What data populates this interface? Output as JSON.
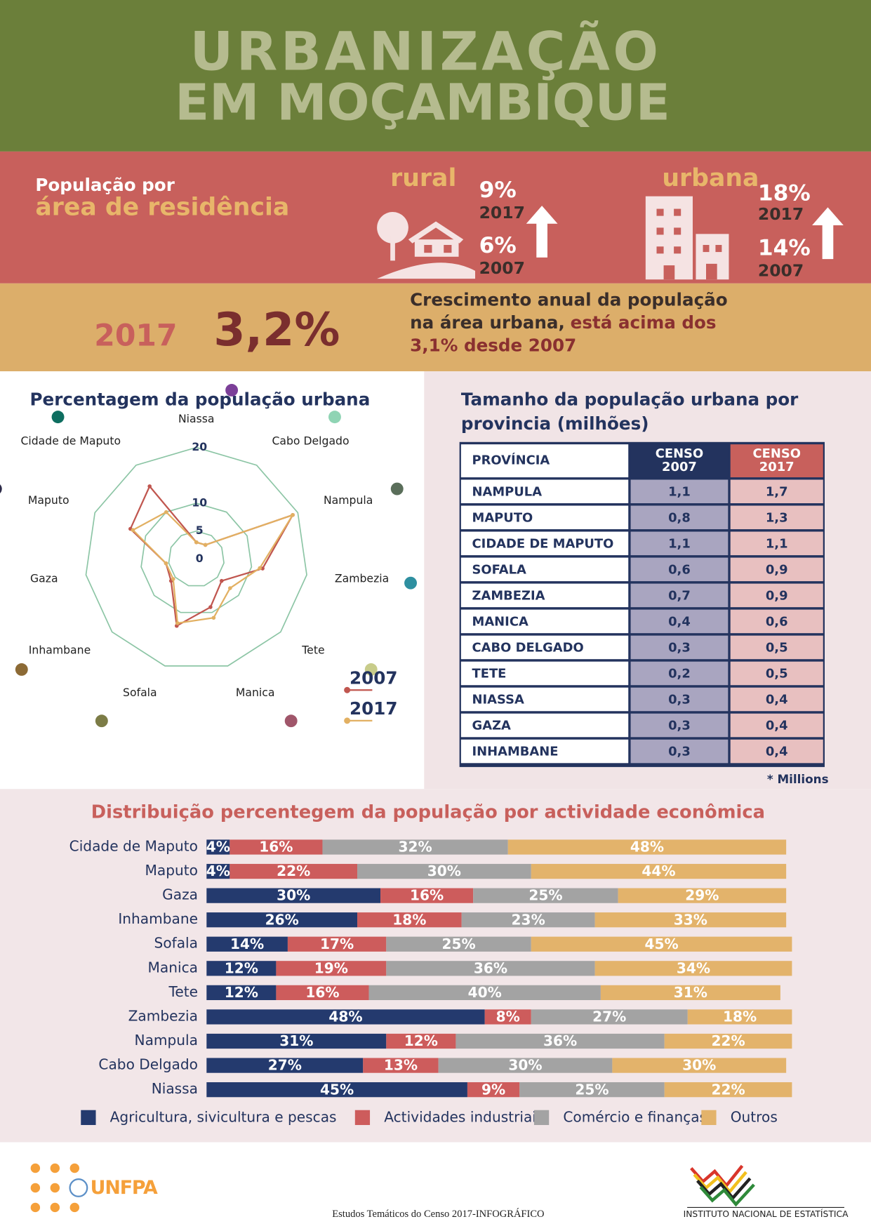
{
  "header": {
    "title": [
      "URBANIZAÇÃO",
      "EM MOÇAMBIQUE"
    ]
  },
  "residence": {
    "label": [
      "População por",
      "área de residência"
    ],
    "areas": [
      {
        "name": "rural",
        "stats": [
          {
            "value": "9%",
            "year": "2017"
          },
          {
            "value": "6%",
            "year": "2007"
          }
        ]
      },
      {
        "name": "urbana",
        "stats": [
          {
            "value": "18%",
            "year": "2017"
          },
          {
            "value": "14%",
            "year": "2007"
          }
        ]
      }
    ]
  },
  "growth": {
    "year": "2017",
    "value": "3,2%",
    "text": [
      "Crescimento anual da população",
      "na área urbana,",
      "está acima dos",
      "3,1% desde 2007"
    ]
  },
  "chart_data": [
    {
      "type": "radar",
      "title": "Percentagem da população urbana",
      "categories": [
        "Niassa",
        "Cabo Delgado",
        "Nampula",
        "Zambezia",
        "Tete",
        "Manica",
        "Sofala",
        "Inhambane",
        "Gaza",
        "Maputo",
        "Cidade de Maputo"
      ],
      "category_colors": [
        "#7b3f98",
        "#8fd4b4",
        "#5a6e5a",
        "#2e8fa0",
        "#c8cc8a",
        "#a0566a",
        "#7c7c46",
        "#8c6a35",
        "#8a2e4e",
        "#2c2a48",
        "#0e6e60"
      ],
      "series": [
        {
          "name": "2007",
          "color": "#c0564f",
          "values": [
            3,
            3,
            19,
            12,
            6,
            9,
            12.5,
            6,
            5.5,
            13,
            15.5
          ]
        },
        {
          "name": "2017",
          "color": "#e2b062",
          "values": [
            3,
            3,
            19,
            11.5,
            8,
            11,
            12,
            5.5,
            5.5,
            12.5,
            10
          ]
        }
      ],
      "ylim": [
        0,
        20
      ],
      "yticks": [
        0,
        5,
        10,
        20
      ],
      "grid": true,
      "grid_color": "#8cc5a5"
    },
    {
      "type": "stacked_barh",
      "title": "Distribuição percentegem da população por actividade econômica",
      "categories": [
        "Cidade de Maputo",
        "Maputo",
        "Gaza",
        "Inhambane",
        "Sofala",
        "Manica",
        "Tete",
        "Zambezia",
        "Nampula",
        "Cabo Delgado",
        "Niassa"
      ],
      "series": [
        {
          "name": "Agricultura, sivicultura e pescas",
          "color": "#243a6e",
          "values": [
            4,
            4,
            30,
            26,
            14,
            12,
            12,
            48,
            31,
            27,
            45
          ],
          "value_labels": [
            "4%",
            "4%",
            "30%",
            "26%",
            "14%",
            "12%",
            "12%",
            "48%",
            "31%",
            "27%",
            "45%"
          ]
        },
        {
          "name": "Actividades industriais",
          "color": "#cd5c5c",
          "values": [
            16,
            22,
            16,
            18,
            17,
            19,
            16,
            8,
            12,
            13,
            9
          ],
          "value_labels": [
            "16%",
            "22%",
            "16%",
            "18%",
            "17%",
            "19%",
            "16%",
            "8%",
            "12%",
            "13%",
            "9%"
          ]
        },
        {
          "name": "Comércio e finanças",
          "color": "#a3a3a3",
          "values": [
            32,
            30,
            25,
            23,
            25,
            36,
            40,
            27,
            36,
            30,
            25
          ],
          "value_labels": [
            "32%",
            "30%",
            "25%",
            "23%",
            "25%",
            "36%",
            "40%",
            "27%",
            "36%",
            "30%",
            "25%"
          ]
        },
        {
          "name": "Outros",
          "color": "#e3b36b",
          "values": [
            48,
            44,
            29,
            33,
            45,
            34,
            31,
            18,
            22,
            30,
            22
          ],
          "value_labels": [
            "48%",
            "44%",
            "29%",
            "33%",
            "45%",
            "34%",
            "31%",
            "18%",
            "22%",
            "30%",
            "22%"
          ]
        }
      ],
      "xlim": [
        0,
        100
      ],
      "legend": "bottom"
    }
  ],
  "table": {
    "title": [
      "Tamanho da população urbana por",
      "provincia (milhões)"
    ],
    "headers": [
      [
        "PROVÍNCIA"
      ],
      [
        "CENSO",
        "2007"
      ],
      [
        "CENSO",
        "2017"
      ]
    ],
    "rows": [
      [
        "NAMPULA",
        "1,1",
        "1,7"
      ],
      [
        "MAPUTO",
        "0,8",
        "1,3"
      ],
      [
        "CIDADE DE MAPUTO",
        "1,1",
        "1,1"
      ],
      [
        "SOFALA",
        "0,6",
        "0,9"
      ],
      [
        "ZAMBEZIA",
        "0,7",
        "0,9"
      ],
      [
        "MANICA",
        "0,4",
        "0,6"
      ],
      [
        "CABO DELGADO",
        "0,3",
        "0,5"
      ],
      [
        "TETE",
        "0,2",
        "0,5"
      ],
      [
        "NIASSA",
        "0,3",
        "0,4"
      ],
      [
        "GAZA",
        "0,3",
        "0,4"
      ],
      [
        "INHAMBANE",
        "0,3",
        "0,4"
      ]
    ],
    "note": "* Millions"
  },
  "footer": {
    "caption": "Estudos Temáticos do Censo 2017-INFOGRÁFICO",
    "logos": [
      "UNFPA",
      "INSTITUTO NACIONAL DE ESTATÍSTICA"
    ]
  }
}
